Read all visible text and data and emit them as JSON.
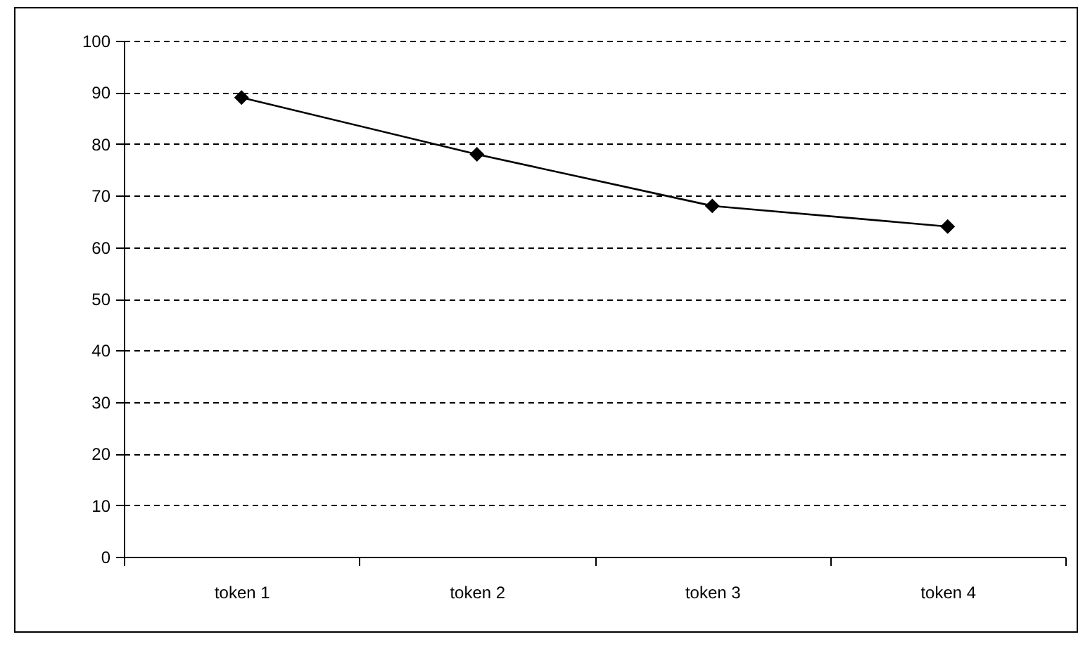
{
  "chart_data": {
    "type": "line",
    "categories": [
      "token 1",
      "token 2",
      "token 3",
      "token 4"
    ],
    "series": [
      {
        "color": "#000000",
        "values": [
          89,
          78,
          68,
          64
        ]
      }
    ],
    "ylim": [
      0,
      100
    ],
    "yticks": [
      0,
      10,
      20,
      30,
      40,
      50,
      60,
      70,
      80,
      90,
      100
    ],
    "grid": "y",
    "marker": "diamond",
    "line_style": "solid",
    "legend": false
  }
}
